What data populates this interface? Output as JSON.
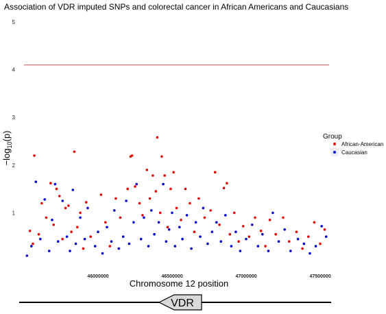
{
  "chart_data": {
    "type": "scatter",
    "title": "Association of VDR imputed SNPs and colorectal cancer in African Americans and Caucasians",
    "xlabel": "Chromosome 12 position",
    "ylabel_prefix": "−log",
    "ylabel_sub": "10",
    "ylabel_suffix": "(p)",
    "xlim": [
      45500000,
      47560000
    ],
    "ylim": [
      0,
      5
    ],
    "x_ticks": [
      46000000,
      46500000,
      47000000,
      47500000
    ],
    "x_tick_labels": [
      "46000000",
      "46500000",
      "47000000",
      "47500000"
    ],
    "y_ticks": [
      1,
      2,
      3,
      4,
      5
    ],
    "y_tick_labels": [
      "1",
      "2",
      "3",
      "4",
      "5"
    ],
    "threshold_line": {
      "y": 4.1,
      "color": "#e88080"
    },
    "legend": {
      "title": "Group",
      "placement": "right",
      "entries": [
        {
          "name": "African-American",
          "color": "#e00000"
        },
        {
          "name": "Caucasian",
          "color": "#0000cc"
        }
      ]
    },
    "series": [
      {
        "name": "African-American",
        "color": "#e00000",
        "points": [
          [
            45540000,
            0.62
          ],
          [
            45560000,
            0.35
          ],
          [
            45570000,
            2.2
          ],
          [
            45600000,
            0.55
          ],
          [
            45620000,
            1.2
          ],
          [
            45650000,
            0.9
          ],
          [
            45680000,
            1.62
          ],
          [
            45700000,
            0.75
          ],
          [
            45720000,
            1.5
          ],
          [
            45740000,
            1.35
          ],
          [
            45760000,
            0.45
          ],
          [
            45780000,
            1.1
          ],
          [
            45800000,
            1.15
          ],
          [
            45820000,
            0.6
          ],
          [
            45840000,
            2.28
          ],
          [
            45860000,
            0.7
          ],
          [
            45880000,
            1.0
          ],
          [
            45900000,
            0.25
          ],
          [
            45920000,
            1.22
          ],
          [
            45950000,
            0.5
          ],
          [
            46020000,
            1.38
          ],
          [
            46050000,
            0.8
          ],
          [
            46080000,
            0.3
          ],
          [
            46120000,
            1.3
          ],
          [
            46150000,
            0.9
          ],
          [
            46200000,
            1.5
          ],
          [
            46220000,
            2.18
          ],
          [
            46230000,
            2.2
          ],
          [
            46250000,
            1.55
          ],
          [
            46280000,
            1.2
          ],
          [
            46300000,
            0.95
          ],
          [
            46330000,
            1.9
          ],
          [
            46350000,
            1.3
          ],
          [
            46370000,
            1.78
          ],
          [
            46390000,
            1.45
          ],
          [
            46400000,
            2.58
          ],
          [
            46420000,
            1.0
          ],
          [
            46430000,
            2.18
          ],
          [
            46450000,
            1.78
          ],
          [
            46470000,
            0.7
          ],
          [
            46490000,
            1.5
          ],
          [
            46510000,
            1.85
          ],
          [
            46530000,
            1.1
          ],
          [
            46560000,
            0.85
          ],
          [
            46590000,
            1.5
          ],
          [
            46620000,
            1.2
          ],
          [
            46650000,
            0.6
          ],
          [
            46680000,
            1.3
          ],
          [
            46720000,
            0.9
          ],
          [
            46760000,
            1.05
          ],
          [
            46790000,
            1.85
          ],
          [
            46820000,
            0.75
          ],
          [
            46850000,
            1.52
          ],
          [
            46870000,
            1.62
          ],
          [
            46890000,
            0.55
          ],
          [
            46920000,
            1.0
          ],
          [
            46950000,
            0.4
          ],
          [
            46980000,
            0.72
          ],
          [
            47020000,
            0.5
          ],
          [
            47060000,
            0.9
          ],
          [
            47100000,
            0.62
          ],
          [
            47130000,
            0.3
          ],
          [
            47160000,
            0.85
          ],
          [
            47200000,
            0.55
          ],
          [
            47250000,
            0.9
          ],
          [
            47290000,
            0.4
          ],
          [
            47340000,
            0.6
          ],
          [
            47380000,
            0.25
          ],
          [
            47420000,
            0.5
          ],
          [
            47460000,
            0.8
          ],
          [
            47500000,
            0.35
          ],
          [
            47530000,
            0.65
          ]
        ]
      },
      {
        "name": "Caucasian",
        "color": "#0000cc",
        "points": [
          [
            45520000,
            0.1
          ],
          [
            45550000,
            0.3
          ],
          [
            45580000,
            1.65
          ],
          [
            45610000,
            0.45
          ],
          [
            45640000,
            1.28
          ],
          [
            45670000,
            0.2
          ],
          [
            45690000,
            0.85
          ],
          [
            45710000,
            1.6
          ],
          [
            45730000,
            0.4
          ],
          [
            45760000,
            1.25
          ],
          [
            45790000,
            0.5
          ],
          [
            45810000,
            0.2
          ],
          [
            45830000,
            1.48
          ],
          [
            45850000,
            0.35
          ],
          [
            45880000,
            0.9
          ],
          [
            45910000,
            0.45
          ],
          [
            45930000,
            1.1
          ],
          [
            45980000,
            0.3
          ],
          [
            46000000,
            0.6
          ],
          [
            46030000,
            0.15
          ],
          [
            46060000,
            0.7
          ],
          [
            46090000,
            0.4
          ],
          [
            46110000,
            1.05
          ],
          [
            46140000,
            0.25
          ],
          [
            46170000,
            0.5
          ],
          [
            46190000,
            1.25
          ],
          [
            46210000,
            0.35
          ],
          [
            46240000,
            0.8
          ],
          [
            46260000,
            1.6
          ],
          [
            46290000,
            0.45
          ],
          [
            46310000,
            0.9
          ],
          [
            46340000,
            0.3
          ],
          [
            46360000,
            1.05
          ],
          [
            46380000,
            0.55
          ],
          [
            46410000,
            0.8
          ],
          [
            46440000,
            1.6
          ],
          [
            46460000,
            0.4
          ],
          [
            46480000,
            0.65
          ],
          [
            46500000,
            1.0
          ],
          [
            46520000,
            0.3
          ],
          [
            46550000,
            0.7
          ],
          [
            46570000,
            0.45
          ],
          [
            46600000,
            0.95
          ],
          [
            46630000,
            0.25
          ],
          [
            46660000,
            0.8
          ],
          [
            46690000,
            0.5
          ],
          [
            46710000,
            1.1
          ],
          [
            46740000,
            0.35
          ],
          [
            46770000,
            0.6
          ],
          [
            46800000,
            0.8
          ],
          [
            46830000,
            0.4
          ],
          [
            46860000,
            0.95
          ],
          [
            46900000,
            0.3
          ],
          [
            46930000,
            0.6
          ],
          [
            46960000,
            0.2
          ],
          [
            47000000,
            0.45
          ],
          [
            47040000,
            0.75
          ],
          [
            47080000,
            0.3
          ],
          [
            47110000,
            0.55
          ],
          [
            47150000,
            0.2
          ],
          [
            47180000,
            1.0
          ],
          [
            47220000,
            0.4
          ],
          [
            47260000,
            0.65
          ],
          [
            47300000,
            0.2
          ],
          [
            47350000,
            0.45
          ],
          [
            47390000,
            0.35
          ],
          [
            47430000,
            0.15
          ],
          [
            47470000,
            0.3
          ],
          [
            47510000,
            0.72
          ],
          [
            47540000,
            0.5
          ]
        ]
      }
    ]
  },
  "gene": {
    "label": "VDR",
    "start": 46250000,
    "end": 46330000,
    "strand": "reverse"
  }
}
